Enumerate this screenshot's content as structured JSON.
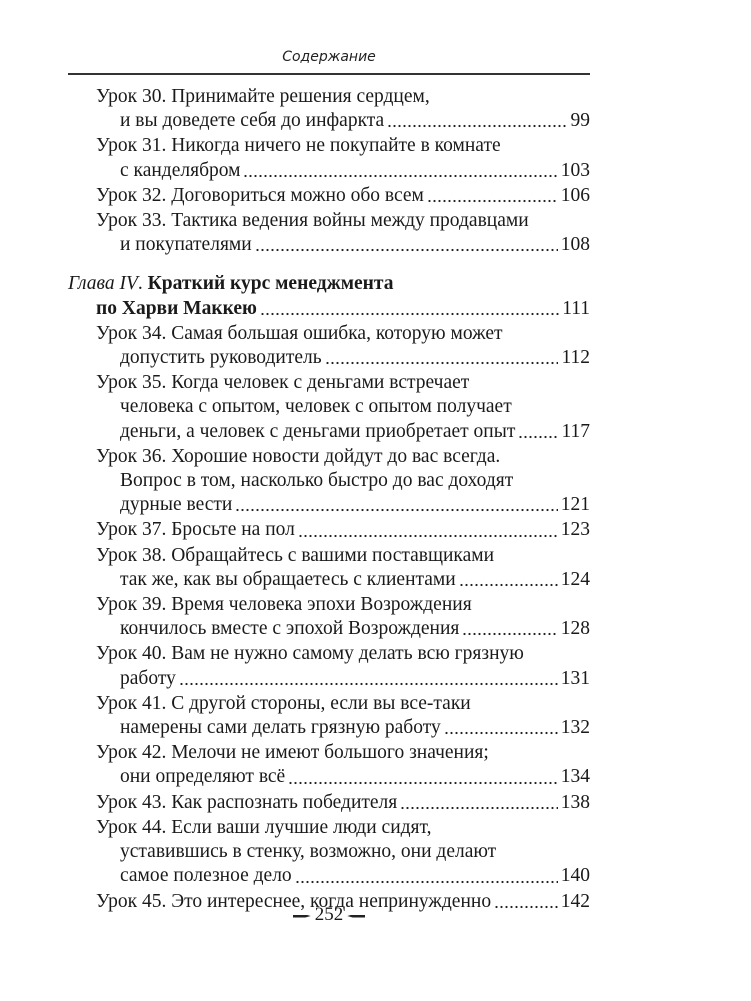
{
  "running_head": "Содержание",
  "entries": [
    {
      "lines": [
        "Урок 30. Принимайте решения сердцем,"
      ],
      "last": "и вы доведете себя до инфаркта",
      "page": "99"
    },
    {
      "lines": [
        "Урок 31. Никогда ничего не покупайте в комнате"
      ],
      "last": "с канделябром",
      "page": "103"
    },
    {
      "lines": [],
      "last": "Урок 32. Договориться можно обо всем",
      "page": "106"
    },
    {
      "lines": [
        "Урок 33. Тактика ведения войны между продавцами"
      ],
      "last": "и покупателями",
      "page": "108"
    }
  ],
  "chapter": {
    "label": "Глава IV",
    "title": "Краткий курс менеджмента",
    "last": "по Харви Маккею",
    "page": "111"
  },
  "entries2": [
    {
      "lines": [
        "Урок 34. Самая большая ошибка, которую может"
      ],
      "last": "допустить руководитель",
      "page": "112"
    },
    {
      "lines": [
        "Урок 35. Когда человек с деньгами встречает",
        "человека с опытом, человек с опытом получает"
      ],
      "last": "деньги, а человек с деньгами приобретает опыт",
      "page": "117"
    },
    {
      "lines": [
        "Урок 36. Хорошие новости дойдут до вас всегда.",
        "Вопрос в том, насколько быстро до вас доходят"
      ],
      "last": "дурные вести",
      "page": "121"
    },
    {
      "lines": [],
      "last": "Урок 37. Бросьте на пол",
      "page": "123"
    },
    {
      "lines": [
        "Урок 38. Обращайтесь с вашими поставщиками"
      ],
      "last": "так же, как вы обращаетесь с клиентами",
      "page": "124"
    },
    {
      "lines": [
        "Урок 39. Время человека эпохи Возрождения"
      ],
      "last": "кончилось вместе с эпохой Возрождения",
      "page": "128"
    },
    {
      "lines": [
        "Урок 40. Вам не нужно самому делать всю грязную"
      ],
      "last": "работу",
      "page": "131"
    },
    {
      "lines": [
        "Урок 41. С другой стороны, если вы все-таки"
      ],
      "last": "намерены сами делать грязную работу",
      "page": "132"
    },
    {
      "lines": [
        "Урок 42. Мелочи не имеют большого значения;"
      ],
      "last": "они определяют всё",
      "page": "134"
    },
    {
      "lines": [],
      "last": "Урок 43. Как распознать победителя",
      "page": "138"
    },
    {
      "lines": [
        "Урок 44. Если ваши лучшие люди сидят,",
        "уставившись в стенку, возможно, они делают"
      ],
      "last": "самое полезное дело",
      "page": "140"
    },
    {
      "lines": [],
      "last": "Урок 45. Это интереснее, когда непринужденно",
      "page": "142"
    }
  ],
  "folio": "252"
}
